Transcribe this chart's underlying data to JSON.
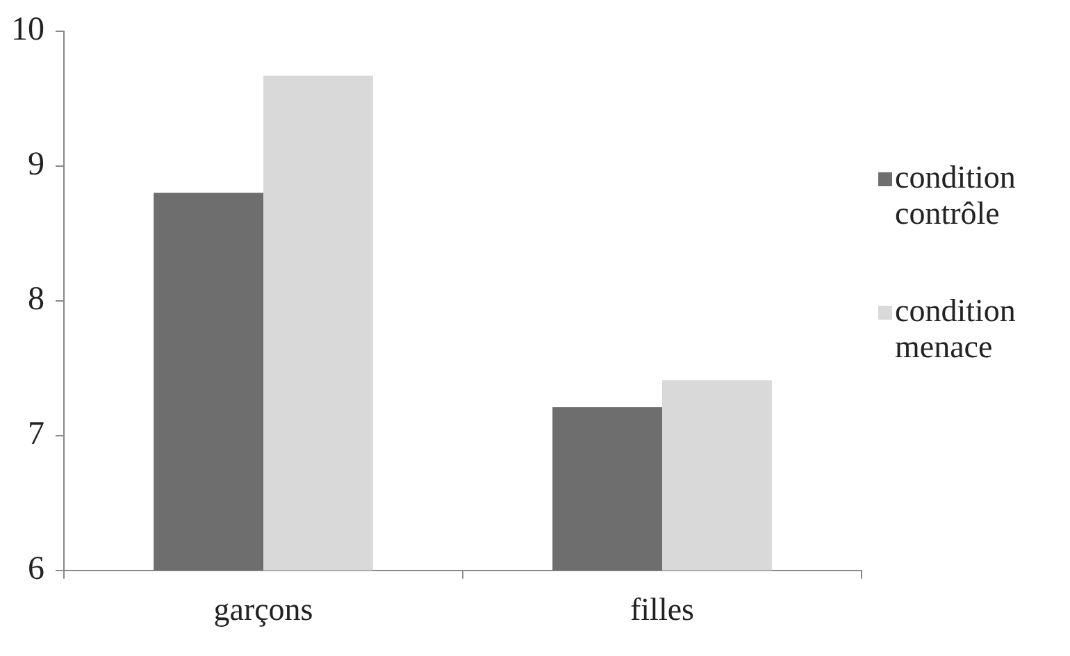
{
  "chart_data": {
    "type": "bar",
    "categories": [
      "garçons",
      "filles"
    ],
    "series": [
      {
        "name": "condition contrôle",
        "color": "#6e6e6e",
        "values": [
          8.8,
          7.21
        ]
      },
      {
        "name": "condition menace",
        "color": "#d9d9d9",
        "values": [
          9.67,
          7.41
        ]
      }
    ],
    "ylim": [
      6,
      10
    ],
    "yticks": [
      6,
      7,
      8,
      9,
      10
    ],
    "grid": false,
    "legend": "right"
  }
}
